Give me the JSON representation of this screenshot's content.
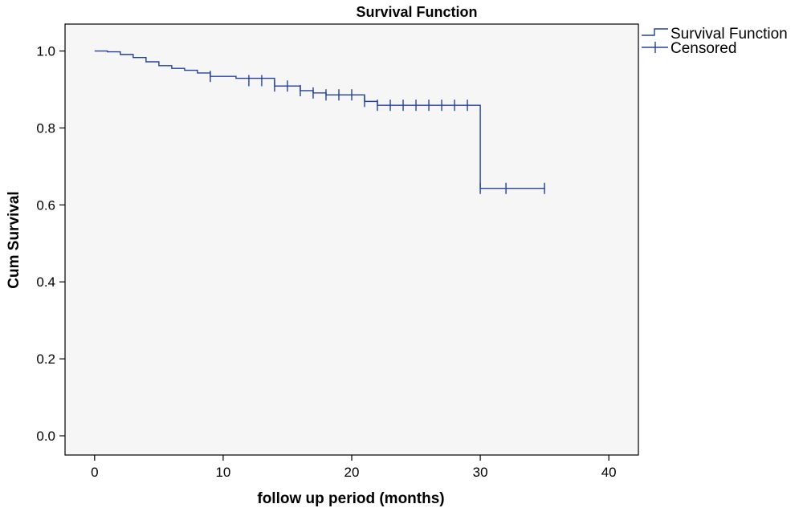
{
  "chart_data": {
    "type": "line",
    "step": true,
    "title": "Survival Function",
    "xlabel": "follow up period (months)",
    "ylabel": "Cum Survival",
    "xlim": [
      -2.3,
      42.3
    ],
    "ylim": [
      -0.05,
      1.07
    ],
    "x_ticks": [
      0,
      10,
      20,
      30,
      40
    ],
    "x_tick_labels": [
      "0",
      "10",
      "20",
      "30",
      "40"
    ],
    "y_ticks": [
      0.0,
      0.2,
      0.4,
      0.6,
      0.8,
      1.0
    ],
    "y_tick_labels": [
      "0.0",
      "0.2",
      "0.4",
      "0.6",
      "0.8",
      "1.0"
    ],
    "grid": false,
    "plot_background": "#f6f6f6",
    "line_color": "#2340a0",
    "legend_position": "right-top",
    "legend": [
      "Survival Function",
      "Censored"
    ],
    "series": [
      {
        "name": "Survival Function",
        "points": [
          [
            0,
            1.0
          ],
          [
            1,
            0.998
          ],
          [
            2,
            0.991
          ],
          [
            3,
            0.983
          ],
          [
            4,
            0.972
          ],
          [
            5,
            0.962
          ],
          [
            6,
            0.955
          ],
          [
            7,
            0.95
          ],
          [
            8,
            0.943
          ],
          [
            9,
            0.934
          ],
          [
            11,
            0.929
          ],
          [
            14,
            0.909
          ],
          [
            16,
            0.897
          ],
          [
            17,
            0.891
          ],
          [
            18,
            0.886
          ],
          [
            21,
            0.869
          ],
          [
            22,
            0.859
          ],
          [
            30,
            0.643
          ],
          [
            35,
            0.643
          ]
        ]
      },
      {
        "name": "Censored",
        "points": [
          [
            9,
            0.934
          ],
          [
            12,
            0.923
          ],
          [
            13,
            0.923
          ],
          [
            14,
            0.909
          ],
          [
            15,
            0.909
          ],
          [
            16,
            0.897
          ],
          [
            17,
            0.891
          ],
          [
            18,
            0.886
          ],
          [
            19,
            0.886
          ],
          [
            20,
            0.886
          ],
          [
            21,
            0.869
          ],
          [
            22,
            0.859
          ],
          [
            23,
            0.859
          ],
          [
            24,
            0.859
          ],
          [
            25,
            0.859
          ],
          [
            26,
            0.859
          ],
          [
            27,
            0.859
          ],
          [
            28,
            0.859
          ],
          [
            29,
            0.859
          ],
          [
            30,
            0.643
          ],
          [
            32,
            0.643
          ],
          [
            35,
            0.643
          ]
        ]
      }
    ]
  }
}
